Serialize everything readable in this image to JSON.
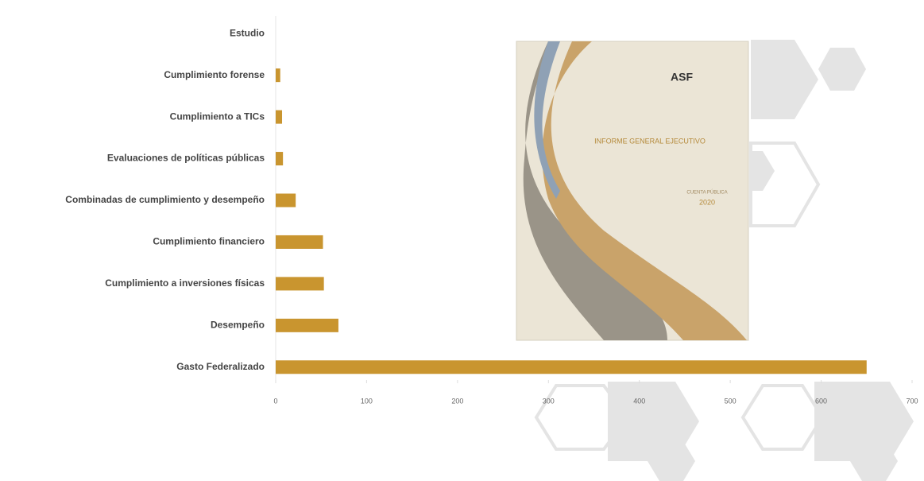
{
  "chart_data": {
    "type": "barh",
    "categories": [
      "Estudio",
      "Cumplimiento forense",
      "Cumplimiento a TICs",
      "Evaluaciones de políticas públicas",
      "Combinadas de cumplimiento y desempeño",
      "Cumplimiento financiero",
      "Cumplimiento a inversiones físicas",
      "Desempeño",
      "Gasto Federalizado"
    ],
    "values": [
      0,
      5,
      7,
      8,
      22,
      52,
      53,
      69,
      650
    ],
    "color": "#c9952f",
    "xlim": [
      0,
      700
    ],
    "xticks": [
      0,
      100,
      200,
      300,
      400,
      500,
      600,
      700
    ],
    "grid": false
  },
  "cover": {
    "logo": "ASF",
    "title": "INFORME GENERAL EJECUTIVO",
    "subtitle": "CUENTA PÚBLICA",
    "year": "2020"
  }
}
